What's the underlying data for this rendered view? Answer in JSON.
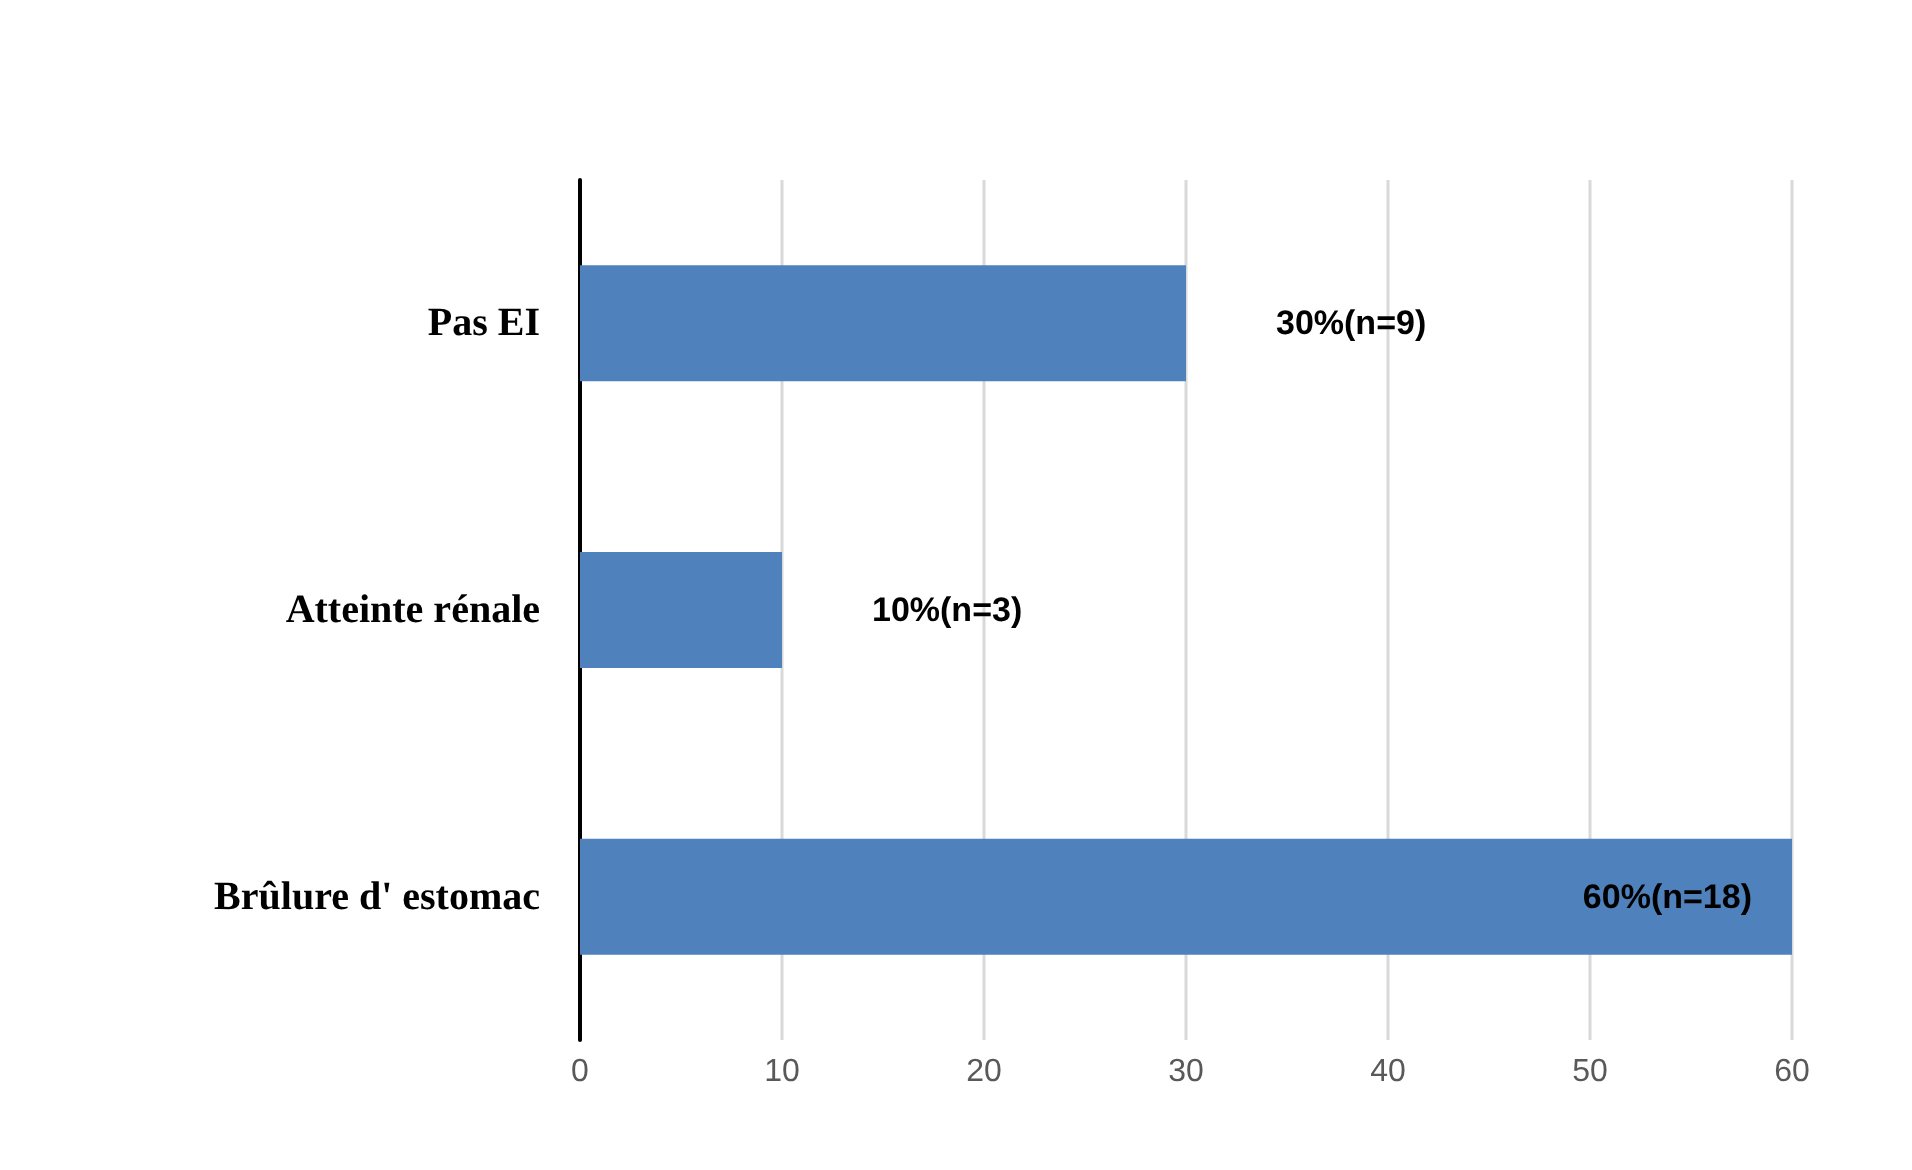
{
  "chart_data": {
    "type": "bar",
    "orientation": "horizontal",
    "categories": [
      "Pas EI",
      "Atteinte rénale",
      "Brûlure d' estomac"
    ],
    "values": [
      30,
      10,
      60
    ],
    "color": "#4f81bd",
    "value_labels": [
      "30%(n=9)",
      "10%(n=3)",
      "60%(n=18)"
    ],
    "xlim": [
      0,
      60
    ],
    "xticks": [
      0,
      10,
      20,
      30,
      40,
      50,
      60
    ],
    "grid": "x"
  }
}
